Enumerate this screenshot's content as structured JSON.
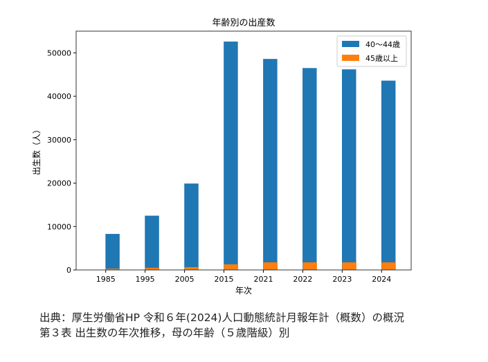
{
  "chart_data": {
    "type": "bar",
    "title": "年齢別の出産数",
    "xlabel": "年次",
    "ylabel": "出生数（人）",
    "categories": [
      "1985",
      "1995",
      "2005",
      "2015",
      "2021",
      "2022",
      "2023",
      "2024"
    ],
    "series": [
      {
        "name": "40～44歳",
        "color": "#1f77b4",
        "values": [
          8300,
          12500,
          19900,
          52600,
          48600,
          46500,
          46200,
          43600
        ]
      },
      {
        "name": "45歳以上",
        "color": "#ff7f0e",
        "values": [
          300,
          500,
          650,
          1300,
          1750,
          1750,
          1750,
          1750
        ]
      }
    ],
    "yticks": [
      0,
      10000,
      20000,
      30000,
      40000,
      50000
    ],
    "ylim": [
      0,
      55000
    ],
    "legend": "top-right",
    "grid": false
  },
  "caption": {
    "line1": "出典：厚生労働省HP 令和６年(2024)人口動態統計月報年計（概数）の概況",
    "line2": "第３表 出生数の年次推移，母の年齢（５歳階級）別"
  }
}
